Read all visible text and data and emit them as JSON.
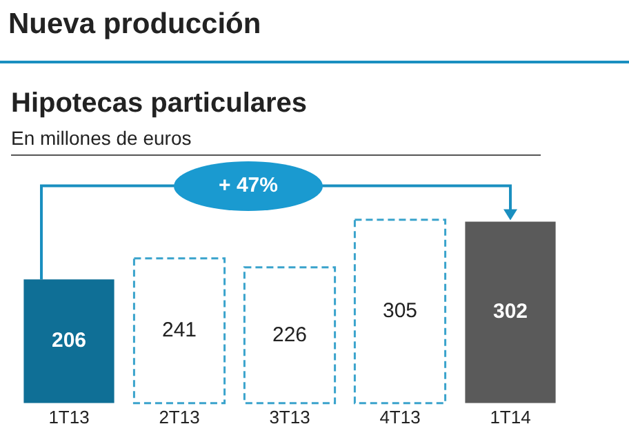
{
  "chart_data": {
    "type": "bar",
    "title": "Nueva producción",
    "subtitle": "Hipotecas particulares",
    "ylabel": "En millones de euros",
    "categories": [
      "1T13",
      "2T13",
      "3T13",
      "4T13",
      "1T14"
    ],
    "series": [
      {
        "values": [
          206,
          null,
          null,
          null,
          302
        ],
        "colors": [
          "#0f6f96",
          null,
          null,
          null,
          "#5a5a5a"
        ]
      },
      {
        "values": [
          null,
          241,
          226,
          305,
          null
        ],
        "color": "#3aa3cc",
        "line_style": "dashed"
      }
    ],
    "data_labels": true,
    "grid": false,
    "legend": false,
    "tick_labels": "x",
    "annotations": [
      "+ 47%"
    ]
  }
}
